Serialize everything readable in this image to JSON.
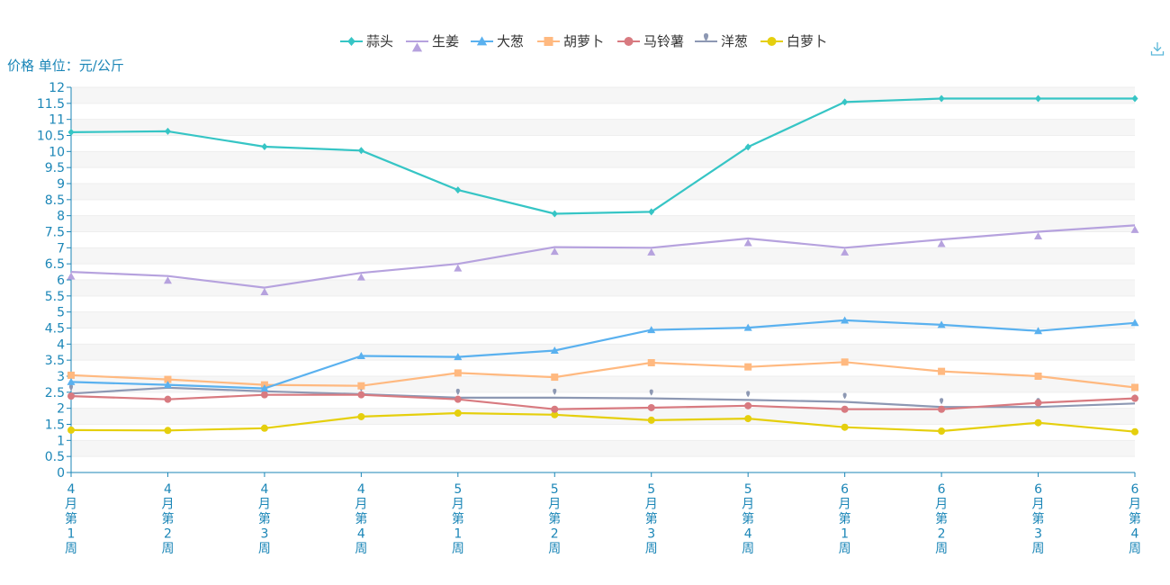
{
  "chart_data": {
    "type": "line",
    "title": "",
    "xlabel": "",
    "ylabel": "价格 单位：元/公斤",
    "ylim": [
      0,
      12
    ],
    "y_step": 0.5,
    "categories": [
      "4月第1周",
      "4月第2周",
      "4月第3周",
      "4月第4周",
      "5月第1周",
      "5月第2周",
      "5月第3周",
      "5月第4周",
      "6月第1周",
      "6月第2周",
      "6月第3周",
      "6月第4周"
    ],
    "legend_position": "top-center",
    "grid": true,
    "series": [
      {
        "name": "蒜头",
        "color": "#36c5c5",
        "marker": "diamond",
        "values": [
          10.6,
          10.63,
          10.15,
          10.03,
          8.8,
          8.06,
          8.12,
          10.14,
          11.54,
          11.65,
          11.65,
          11.65
        ]
      },
      {
        "name": "生姜",
        "color": "#b6a2de",
        "marker": "triangle",
        "values": [
          6.25,
          6.12,
          5.76,
          6.22,
          6.5,
          7.02,
          7.0,
          7.29,
          7.0,
          7.26,
          7.5,
          7.7
        ]
      },
      {
        "name": "大葱",
        "color": "#5ab1ef",
        "marker": "triangle",
        "values": [
          2.82,
          2.73,
          2.62,
          3.63,
          3.6,
          3.8,
          4.44,
          4.51,
          4.74,
          4.6,
          4.41,
          4.66
        ]
      },
      {
        "name": "胡萝卜",
        "color": "#ffb980",
        "marker": "square",
        "values": [
          3.03,
          2.9,
          2.73,
          2.7,
          3.1,
          2.97,
          3.42,
          3.29,
          3.44,
          3.15,
          3.0,
          2.65
        ]
      },
      {
        "name": "马铃薯",
        "color": "#d87a80",
        "marker": "circle",
        "values": [
          2.38,
          2.28,
          2.42,
          2.42,
          2.28,
          1.97,
          2.02,
          2.08,
          1.97,
          1.97,
          2.17,
          2.31
        ]
      },
      {
        "name": "洋葱",
        "color": "#8d98b3",
        "marker": "pin",
        "values": [
          2.46,
          2.64,
          2.53,
          2.44,
          2.33,
          2.33,
          2.31,
          2.26,
          2.2,
          2.04,
          2.04,
          2.15
        ]
      },
      {
        "name": "白萝卜",
        "color": "#e5cf0d",
        "marker": "circle",
        "values": [
          1.32,
          1.31,
          1.38,
          1.74,
          1.85,
          1.8,
          1.63,
          1.68,
          1.41,
          1.29,
          1.55,
          1.27
        ]
      }
    ]
  }
}
